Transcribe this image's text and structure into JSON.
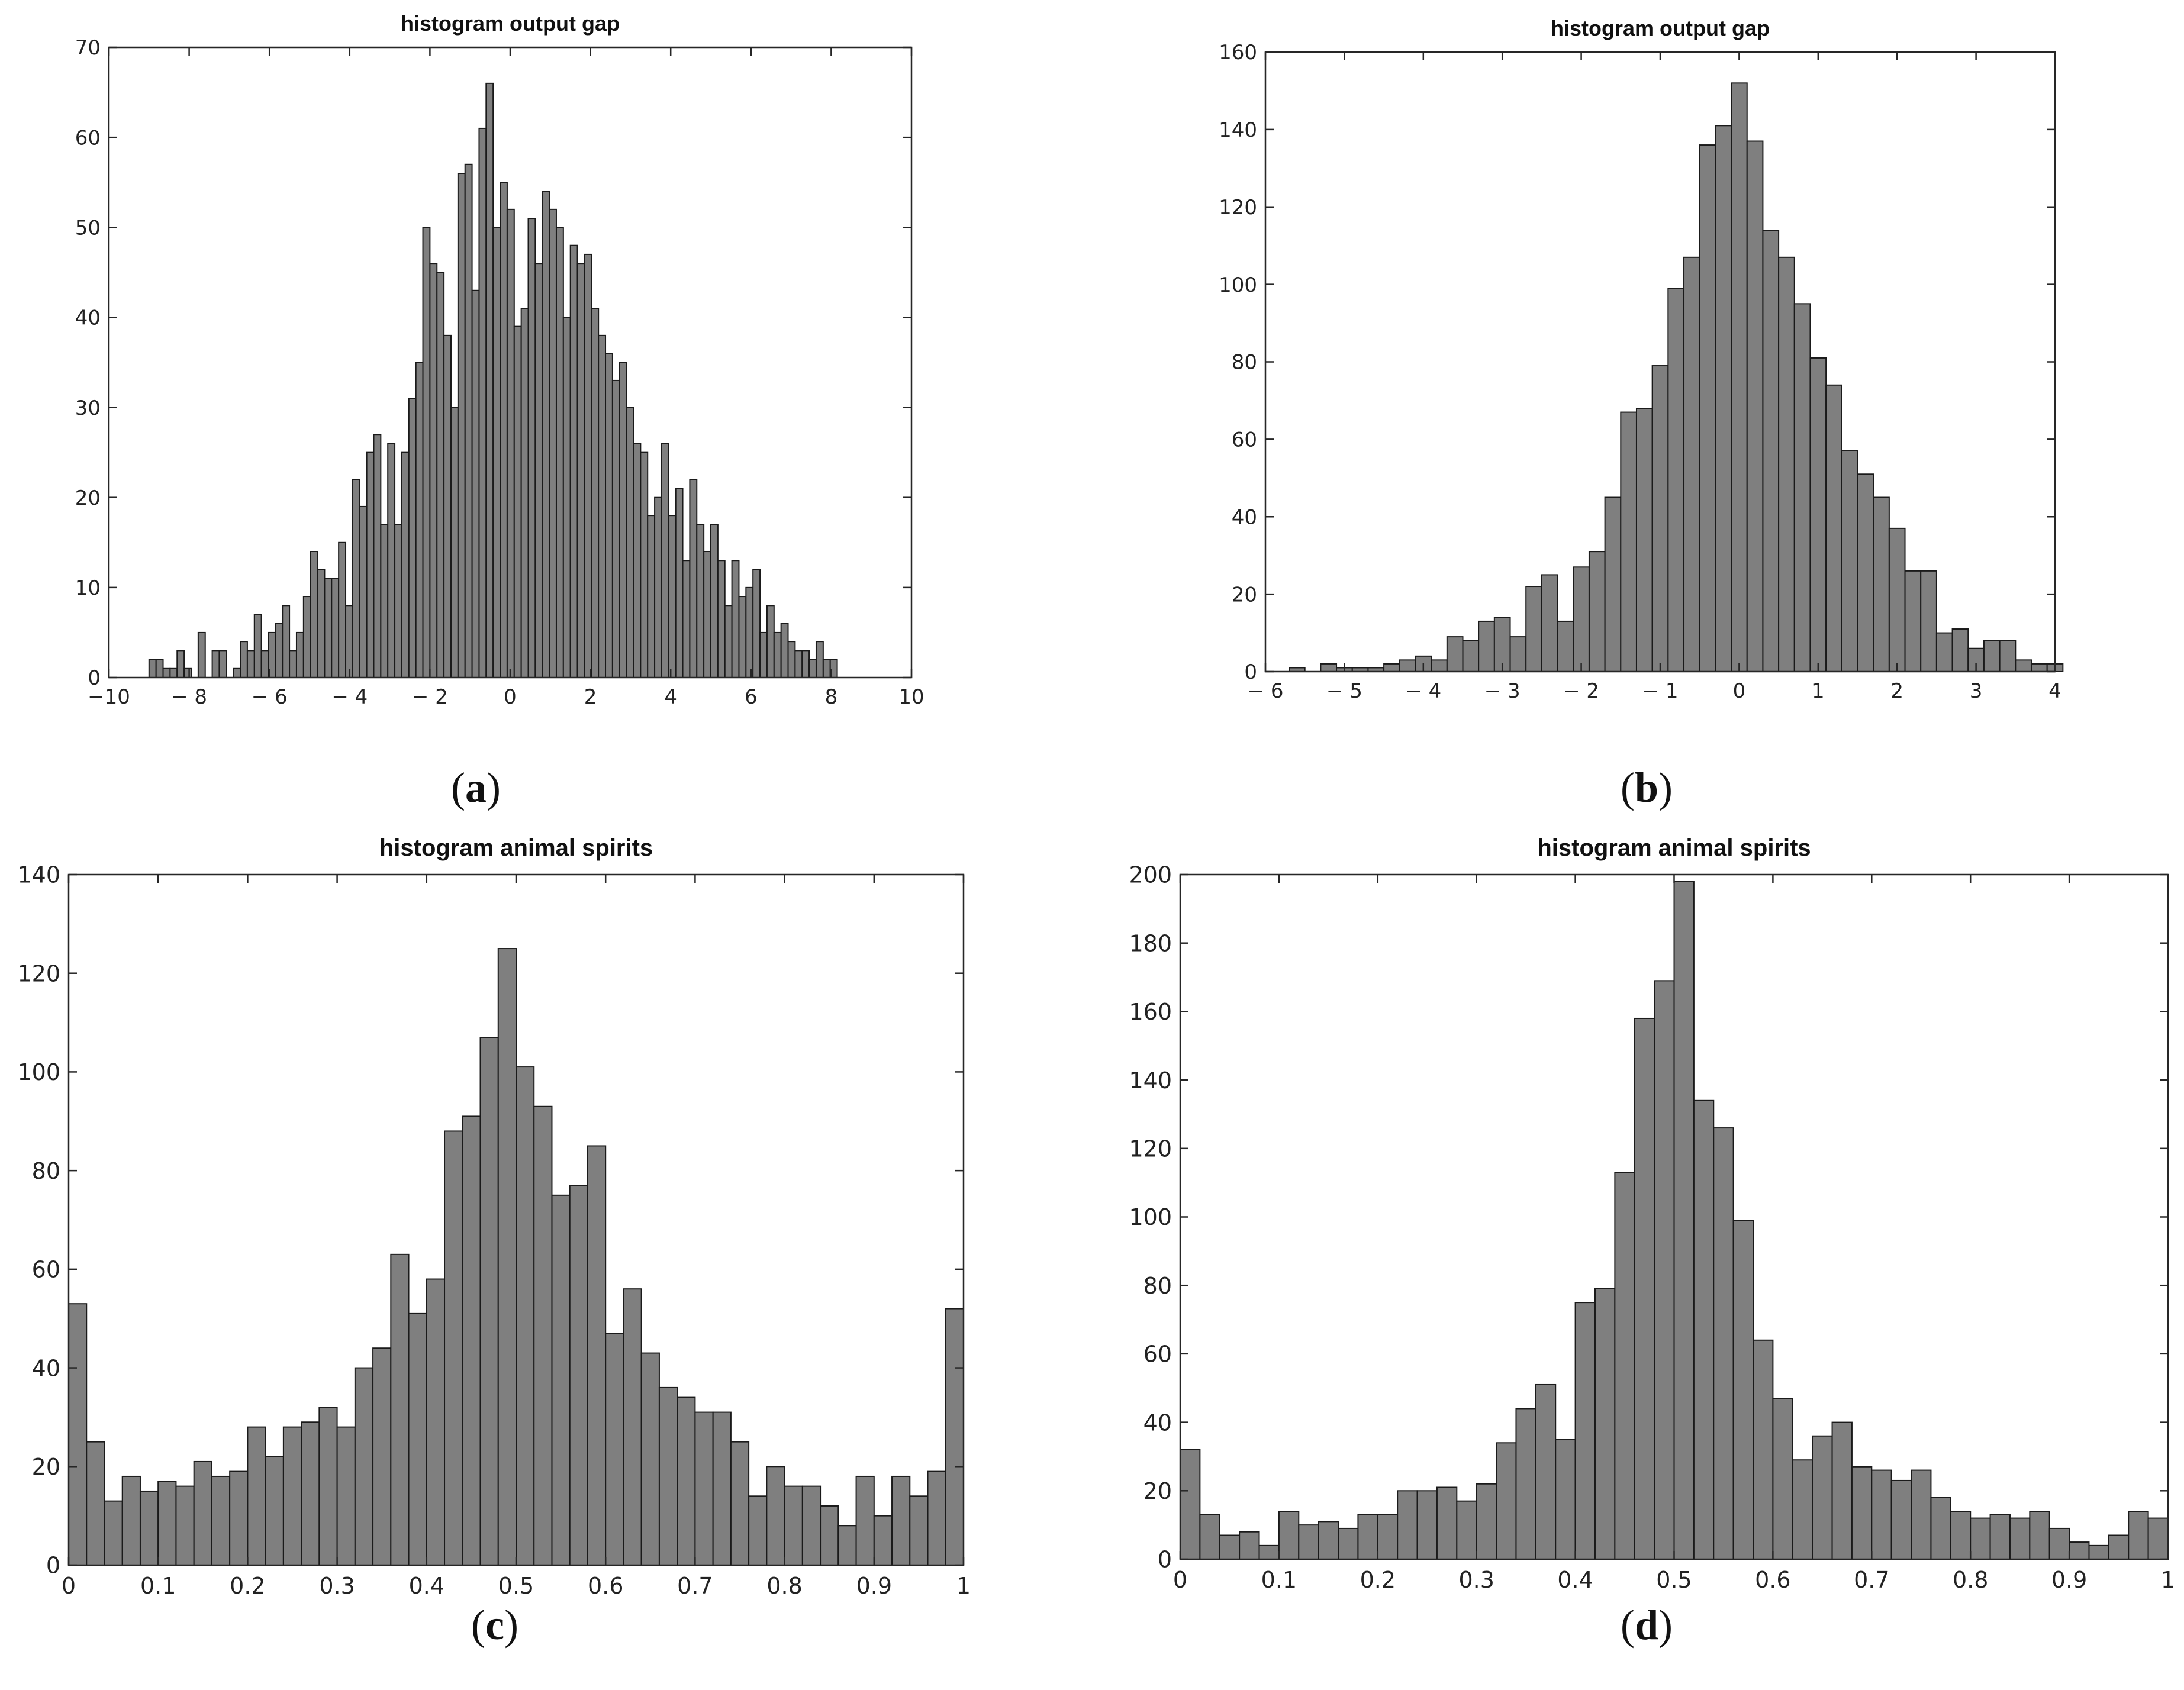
{
  "chart_data": [
    {
      "id": "a",
      "type": "bar",
      "title": "histogram output gap",
      "panel_label_open": "(",
      "panel_label": "a",
      "panel_label_close": ")",
      "xlim": [
        -10,
        10
      ],
      "ylim": [
        0,
        70
      ],
      "xticks": [
        -10,
        -8,
        -6,
        -4,
        -2,
        0,
        2,
        4,
        6,
        8,
        10
      ],
      "xtick_labels": [
        "−10",
        "− 8",
        "− 6",
        "− 4",
        "− 2",
        "0",
        "2",
        "4",
        "6",
        "8",
        "10"
      ],
      "yticks": [
        0,
        10,
        20,
        30,
        40,
        50,
        60,
        70
      ],
      "ytick_labels": [
        "0",
        "10",
        "20",
        "30",
        "40",
        "50",
        "60",
        "70"
      ],
      "bin_start": -9.0,
      "bin_width": 0.175,
      "values": [
        2,
        2,
        1,
        1,
        3,
        1,
        0,
        5,
        0,
        3,
        3,
        0,
        1,
        4,
        3,
        7,
        3,
        5,
        6,
        8,
        3,
        5,
        9,
        14,
        12,
        11,
        11,
        15,
        8,
        22,
        19,
        25,
        27,
        17,
        26,
        17,
        25,
        31,
        35,
        50,
        46,
        45,
        38,
        30,
        56,
        57,
        43,
        61,
        66,
        50,
        55,
        52,
        39,
        41,
        51,
        46,
        54,
        52,
        50,
        40,
        48,
        46,
        47,
        41,
        38,
        36,
        33,
        35,
        30,
        26,
        25,
        18,
        20,
        26,
        18,
        21,
        13,
        22,
        17,
        14,
        17,
        13,
        8,
        13,
        9,
        10,
        12,
        5,
        8,
        5,
        6,
        4,
        3,
        3,
        2,
        4,
        2,
        2
      ]
    },
    {
      "id": "b",
      "type": "bar",
      "title": "histogram output gap",
      "panel_label_open": "(",
      "panel_label": "b",
      "panel_label_close": ")",
      "xlim": [
        -6,
        4
      ],
      "ylim": [
        0,
        160
      ],
      "xticks": [
        -6,
        -5,
        -4,
        -3,
        -2,
        -1,
        0,
        1,
        2,
        3,
        4
      ],
      "xtick_labels": [
        "− 6",
        "− 5",
        "− 4",
        "− 3",
        "− 2",
        "− 1",
        "0",
        "1",
        "2",
        "3",
        "4"
      ],
      "yticks": [
        0,
        20,
        40,
        60,
        80,
        100,
        120,
        140,
        160
      ],
      "ytick_labels": [
        "0",
        "20",
        "40",
        "60",
        "80",
        "100",
        "120",
        "140",
        "160"
      ],
      "bin_start": -5.7,
      "bin_width": 0.2,
      "values": [
        1,
        0,
        2,
        1,
        1,
        1,
        2,
        3,
        4,
        3,
        9,
        8,
        13,
        14,
        9,
        22,
        25,
        13,
        27,
        31,
        45,
        67,
        68,
        79,
        99,
        107,
        136,
        141,
        152,
        137,
        114,
        107,
        95,
        81,
        74,
        57,
        51,
        45,
        37,
        26,
        26,
        10,
        11,
        6,
        8,
        8,
        3,
        2,
        2
      ]
    },
    {
      "id": "c",
      "type": "bar",
      "title": "histogram animal spirits",
      "panel_label_open": "(",
      "panel_label": "c",
      "panel_label_close": ")",
      "xlim": [
        0,
        1
      ],
      "ylim": [
        0,
        140
      ],
      "xticks": [
        0,
        0.1,
        0.2,
        0.3,
        0.4,
        0.5,
        0.6,
        0.7,
        0.8,
        0.9,
        1
      ],
      "xtick_labels": [
        "0",
        "0.1",
        "0.2",
        "0.3",
        "0.4",
        "0.5",
        "0.6",
        "0.7",
        "0.8",
        "0.9",
        "1"
      ],
      "yticks": [
        0,
        20,
        40,
        60,
        80,
        100,
        120,
        140
      ],
      "ytick_labels": [
        "0",
        "20",
        "40",
        "60",
        "80",
        "100",
        "120",
        "140"
      ],
      "bin_start": 0,
      "bin_width": 0.02,
      "values": [
        53,
        25,
        13,
        18,
        15,
        17,
        16,
        21,
        18,
        19,
        28,
        22,
        28,
        29,
        32,
        28,
        40,
        44,
        63,
        51,
        58,
        88,
        91,
        107,
        125,
        101,
        93,
        75,
        77,
        85,
        47,
        56,
        43,
        36,
        34,
        31,
        31,
        25,
        14,
        20,
        16,
        16,
        12,
        8,
        18,
        10,
        18,
        14,
        19,
        52
      ]
    },
    {
      "id": "d",
      "type": "bar",
      "title": "histogram animal spirits",
      "panel_label_open": "(",
      "panel_label": "d",
      "panel_label_close": ")",
      "xlim": [
        0,
        1
      ],
      "ylim": [
        0,
        200
      ],
      "xticks": [
        0,
        0.1,
        0.2,
        0.3,
        0.4,
        0.5,
        0.6,
        0.7,
        0.8,
        0.9,
        1
      ],
      "xtick_labels": [
        "0",
        "0.1",
        "0.2",
        "0.3",
        "0.4",
        "0.5",
        "0.6",
        "0.7",
        "0.8",
        "0.9",
        "1"
      ],
      "yticks": [
        0,
        20,
        40,
        60,
        80,
        100,
        120,
        140,
        160,
        180,
        200
      ],
      "ytick_labels": [
        "0",
        "20",
        "40",
        "60",
        "80",
        "100",
        "120",
        "140",
        "160",
        "180",
        "200"
      ],
      "bin_start": 0,
      "bin_width": 0.02,
      "values": [
        32,
        13,
        7,
        8,
        4,
        14,
        10,
        11,
        9,
        13,
        13,
        20,
        20,
        21,
        17,
        22,
        34,
        44,
        51,
        35,
        75,
        79,
        113,
        158,
        169,
        198,
        134,
        126,
        99,
        64,
        47,
        29,
        36,
        40,
        27,
        26,
        23,
        26,
        18,
        14,
        12,
        13,
        12,
        14,
        9,
        5,
        4,
        7,
        14,
        12
      ]
    }
  ],
  "colors": {
    "bar_fill": "#7f7f7f",
    "bar_edge": "#1a1a1a",
    "axis": "#262626",
    "background": "#ffffff"
  }
}
